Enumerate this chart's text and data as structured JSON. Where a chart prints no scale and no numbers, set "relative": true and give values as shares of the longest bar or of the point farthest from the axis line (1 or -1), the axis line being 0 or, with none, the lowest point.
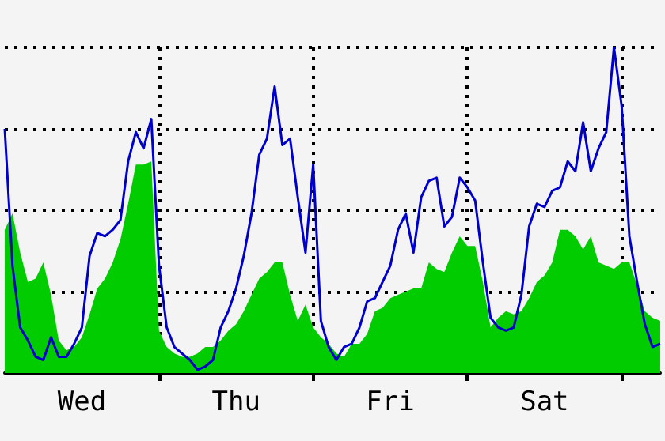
{
  "chart_data": {
    "type": "area",
    "relative": true,
    "grid": true,
    "marker": "none",
    "categories": [
      null,
      null,
      null,
      null,
      null,
      null,
      null,
      null,
      null,
      null,
      "Wed",
      null,
      null,
      null,
      null,
      null,
      null,
      null,
      null,
      null,
      null,
      null,
      null,
      null,
      null,
      null,
      null,
      null,
      null,
      null,
      "Thu",
      null,
      null,
      null,
      null,
      null,
      null,
      null,
      null,
      null,
      null,
      null,
      null,
      null,
      null,
      null,
      null,
      null,
      null,
      null,
      "Fri",
      null,
      null,
      null,
      null,
      null,
      null,
      null,
      null,
      null,
      null,
      null,
      null,
      null,
      null,
      null,
      null,
      null,
      null,
      null,
      "Sat",
      null,
      null,
      null,
      null,
      null,
      null,
      null,
      null,
      null,
      null,
      null,
      null,
      null,
      null,
      null
    ],
    "series": [
      {
        "type": "area",
        "color": "#00cc00",
        "values": [
          0.44,
          0.49,
          0.37,
          0.28,
          0.29,
          0.34,
          0.24,
          0.1,
          0.07,
          0.08,
          0.11,
          0.18,
          0.26,
          0.29,
          0.34,
          0.41,
          0.52,
          0.64,
          0.64,
          0.65,
          0.13,
          0.08,
          0.06,
          0.05,
          0.05,
          0.06,
          0.08,
          0.08,
          0.1,
          0.13,
          0.15,
          0.19,
          0.24,
          0.29,
          0.31,
          0.34,
          0.34,
          0.24,
          0.16,
          0.21,
          0.14,
          0.11,
          0.09,
          0.06,
          0.05,
          0.09,
          0.09,
          0.12,
          0.19,
          0.2,
          0.23,
          0.24,
          0.25,
          0.26,
          0.26,
          0.34,
          0.32,
          0.31,
          0.37,
          0.42,
          0.39,
          0.39,
          0.28,
          0.14,
          0.17,
          0.19,
          0.18,
          0.19,
          0.23,
          0.28,
          0.3,
          0.34,
          0.44,
          0.44,
          0.42,
          0.38,
          0.42,
          0.34,
          0.33,
          0.32,
          0.34,
          0.34,
          0.27,
          0.19,
          0.17,
          0.16
        ]
      },
      {
        "type": "line",
        "color": "#0000cc",
        "values": [
          0.75,
          0.33,
          0.14,
          0.1,
          0.05,
          0.04,
          0.11,
          0.05,
          0.05,
          0.09,
          0.14,
          0.36,
          0.43,
          0.42,
          0.44,
          0.47,
          0.65,
          0.74,
          0.69,
          0.78,
          0.33,
          0.14,
          0.08,
          0.06,
          0.04,
          0.01,
          0.02,
          0.04,
          0.14,
          0.19,
          0.26,
          0.36,
          0.49,
          0.67,
          0.72,
          0.88,
          0.7,
          0.72,
          0.54,
          0.37,
          0.64,
          0.16,
          0.08,
          0.04,
          0.08,
          0.09,
          0.14,
          0.22,
          0.23,
          0.28,
          0.33,
          0.44,
          0.49,
          0.37,
          0.54,
          0.59,
          0.6,
          0.45,
          0.48,
          0.6,
          0.57,
          0.53,
          0.34,
          0.17,
          0.14,
          0.13,
          0.14,
          0.24,
          0.45,
          0.52,
          0.51,
          0.56,
          0.57,
          0.65,
          0.62,
          0.77,
          0.62,
          0.69,
          0.74,
          1.0,
          0.82,
          0.42,
          0.28,
          0.15,
          0.08,
          0.09
        ]
      }
    ]
  }
}
